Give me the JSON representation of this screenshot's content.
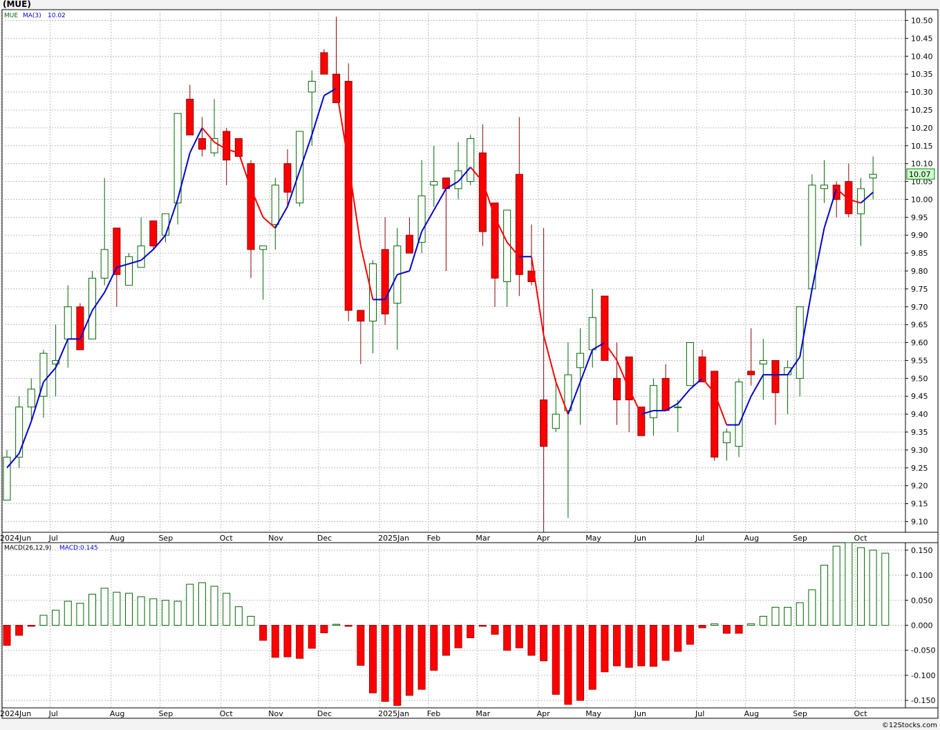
{
  "header": {
    "title": "(MUE)"
  },
  "footer": {
    "credit": "©12Stocks.com"
  },
  "colors": {
    "up": "#006600",
    "down": "#ff0000",
    "ma_up": "#0000cc",
    "ma_down": "#ff0000",
    "grid": "#bbbbbb",
    "price_badge_bg": "#ccffcc"
  },
  "chart_data": [
    {
      "type": "candlestick",
      "legend": {
        "symbol": "MUE",
        "ma_label": "MA(3)",
        "ma_value": "10.02"
      },
      "last_price_label": "10.07",
      "ylim": [
        9.07,
        10.53
      ],
      "y_ticks": [
        "10.50",
        "10.45",
        "10.40",
        "10.35",
        "10.30",
        "10.25",
        "10.20",
        "10.15",
        "10.10",
        "10.05",
        "10.00",
        "9.95",
        "9.90",
        "9.85",
        "9.80",
        "9.75",
        "9.70",
        "9.65",
        "9.60",
        "9.55",
        "9.50",
        "9.45",
        "9.40",
        "9.35",
        "9.30",
        "9.25",
        "9.20",
        "9.15",
        "9.10"
      ],
      "x_labels": [
        {
          "label": "2024Jun",
          "index": 0
        },
        {
          "label": "Jul",
          "index": 4
        },
        {
          "label": "Aug",
          "index": 9
        },
        {
          "label": "Sep",
          "index": 13
        },
        {
          "label": "Oct",
          "index": 18
        },
        {
          "label": "Nov",
          "index": 22
        },
        {
          "label": "Dec",
          "index": 26
        },
        {
          "label": "2025Jan",
          "index": 31
        },
        {
          "label": "Feb",
          "index": 35
        },
        {
          "label": "Mar",
          "index": 39
        },
        {
          "label": "Apr",
          "index": 44
        },
        {
          "label": "May",
          "index": 48
        },
        {
          "label": "Jun",
          "index": 52
        },
        {
          "label": "Jul",
          "index": 57
        },
        {
          "label": "Aug",
          "index": 61
        },
        {
          "label": "Sep",
          "index": 65
        },
        {
          "label": "Oct",
          "index": 70
        }
      ],
      "candles": [
        {
          "o": 9.16,
          "h": 9.3,
          "l": 9.16,
          "c": 9.28
        },
        {
          "o": 9.28,
          "h": 9.45,
          "l": 9.25,
          "c": 9.42
        },
        {
          "o": 9.42,
          "h": 9.5,
          "l": 9.38,
          "c": 9.47
        },
        {
          "o": 9.45,
          "h": 9.58,
          "l": 9.39,
          "c": 9.57
        },
        {
          "o": 9.54,
          "h": 9.65,
          "l": 9.45,
          "c": 9.55
        },
        {
          "o": 9.61,
          "h": 9.76,
          "l": 9.53,
          "c": 9.7
        },
        {
          "o": 9.7,
          "h": 9.71,
          "l": 9.58,
          "c": 9.58
        },
        {
          "o": 9.61,
          "h": 9.8,
          "l": 9.61,
          "c": 9.78
        },
        {
          "o": 9.78,
          "h": 10.06,
          "l": 9.76,
          "c": 9.86
        },
        {
          "o": 9.92,
          "h": 9.92,
          "l": 9.7,
          "c": 9.79
        },
        {
          "o": 9.76,
          "h": 9.85,
          "l": 9.76,
          "c": 9.84
        },
        {
          "o": 9.81,
          "h": 9.95,
          "l": 9.81,
          "c": 9.87
        },
        {
          "o": 9.94,
          "h": 9.94,
          "l": 9.86,
          "c": 9.87
        },
        {
          "o": 9.9,
          "h": 9.96,
          "l": 9.88,
          "c": 9.96
        },
        {
          "o": 9.99,
          "h": 10.24,
          "l": 9.93,
          "c": 10.24
        },
        {
          "o": 10.28,
          "h": 10.32,
          "l": 10.18,
          "c": 10.18
        },
        {
          "o": 10.17,
          "h": 10.23,
          "l": 10.12,
          "c": 10.14
        },
        {
          "o": 10.13,
          "h": 10.28,
          "l": 10.12,
          "c": 10.17
        },
        {
          "o": 10.19,
          "h": 10.2,
          "l": 10.04,
          "c": 10.11
        },
        {
          "o": 10.17,
          "h": 10.17,
          "l": 10.12,
          "c": 10.12
        },
        {
          "o": 10.1,
          "h": 10.11,
          "l": 9.78,
          "c": 9.86
        },
        {
          "o": 9.86,
          "h": 9.87,
          "l": 9.72,
          "c": 9.87
        },
        {
          "o": 9.93,
          "h": 10.06,
          "l": 9.86,
          "c": 10.04
        },
        {
          "o": 10.1,
          "h": 10.14,
          "l": 9.98,
          "c": 10.02
        },
        {
          "o": 9.99,
          "h": 10.19,
          "l": 9.98,
          "c": 10.19
        },
        {
          "o": 10.3,
          "h": 10.36,
          "l": 10.15,
          "c": 10.33
        },
        {
          "o": 10.41,
          "h": 10.42,
          "l": 10.35,
          "c": 10.35
        },
        {
          "o": 10.35,
          "h": 10.51,
          "l": 10.27,
          "c": 10.27
        },
        {
          "o": 10.33,
          "h": 10.38,
          "l": 9.66,
          "c": 9.69
        },
        {
          "o": 9.69,
          "h": 9.69,
          "l": 9.54,
          "c": 9.66
        },
        {
          "o": 9.66,
          "h": 9.83,
          "l": 9.57,
          "c": 9.82
        },
        {
          "o": 9.86,
          "h": 9.95,
          "l": 9.65,
          "c": 9.68
        },
        {
          "o": 9.71,
          "h": 9.92,
          "l": 9.58,
          "c": 9.87
        },
        {
          "o": 9.9,
          "h": 9.95,
          "l": 9.85,
          "c": 9.85
        },
        {
          "o": 9.88,
          "h": 10.11,
          "l": 9.85,
          "c": 10.01
        },
        {
          "o": 10.04,
          "h": 10.15,
          "l": 9.98,
          "c": 10.05
        },
        {
          "o": 10.06,
          "h": 10.06,
          "l": 9.8,
          "c": 10.03
        },
        {
          "o": 10.03,
          "h": 10.16,
          "l": 10.0,
          "c": 10.08
        },
        {
          "o": 10.05,
          "h": 10.18,
          "l": 10.04,
          "c": 10.17
        },
        {
          "o": 10.13,
          "h": 10.21,
          "l": 9.87,
          "c": 9.91
        },
        {
          "o": 9.99,
          "h": 9.99,
          "l": 9.7,
          "c": 9.78
        },
        {
          "o": 9.77,
          "h": 9.97,
          "l": 9.7,
          "c": 9.97
        },
        {
          "o": 10.07,
          "h": 10.23,
          "l": 9.73,
          "c": 9.79
        },
        {
          "o": 9.8,
          "h": 9.93,
          "l": 9.76,
          "c": 9.77
        },
        {
          "o": 9.44,
          "h": 9.92,
          "l": 9.07,
          "c": 9.31
        },
        {
          "o": 9.36,
          "h": 9.5,
          "l": 9.35,
          "c": 9.4
        },
        {
          "o": 9.41,
          "h": 9.6,
          "l": 9.11,
          "c": 9.51
        },
        {
          "o": 9.53,
          "h": 9.64,
          "l": 9.37,
          "c": 9.57
        },
        {
          "o": 9.58,
          "h": 9.75,
          "l": 9.53,
          "c": 9.67
        },
        {
          "o": 9.73,
          "h": 9.73,
          "l": 9.55,
          "c": 9.55
        },
        {
          "o": 9.5,
          "h": 9.6,
          "l": 9.37,
          "c": 9.44
        },
        {
          "o": 9.56,
          "h": 9.56,
          "l": 9.35,
          "c": 9.44
        },
        {
          "o": 9.42,
          "h": 9.42,
          "l": 9.34,
          "c": 9.34
        },
        {
          "o": 9.39,
          "h": 9.5,
          "l": 9.34,
          "c": 9.48
        },
        {
          "o": 9.5,
          "h": 9.54,
          "l": 9.41,
          "c": 9.41
        },
        {
          "o": 9.42,
          "h": 9.44,
          "l": 9.35,
          "c": 9.42
        },
        {
          "o": 9.48,
          "h": 9.6,
          "l": 9.48,
          "c": 9.6
        },
        {
          "o": 9.56,
          "h": 9.58,
          "l": 9.49,
          "c": 9.49
        },
        {
          "o": 9.52,
          "h": 9.52,
          "l": 9.27,
          "c": 9.28
        },
        {
          "o": 9.32,
          "h": 9.36,
          "l": 9.27,
          "c": 9.35
        },
        {
          "o": 9.31,
          "h": 9.5,
          "l": 9.28,
          "c": 9.49
        },
        {
          "o": 9.52,
          "h": 9.64,
          "l": 9.48,
          "c": 9.51
        },
        {
          "o": 9.54,
          "h": 9.61,
          "l": 9.44,
          "c": 9.55
        },
        {
          "o": 9.55,
          "h": 9.55,
          "l": 9.37,
          "c": 9.46
        },
        {
          "o": 9.51,
          "h": 9.55,
          "l": 9.4,
          "c": 9.53
        },
        {
          "o": 9.5,
          "h": 9.7,
          "l": 9.45,
          "c": 9.7
        },
        {
          "o": 9.75,
          "h": 10.07,
          "l": 9.75,
          "c": 10.04
        },
        {
          "o": 10.03,
          "h": 10.11,
          "l": 9.99,
          "c": 10.04
        },
        {
          "o": 10.04,
          "h": 10.05,
          "l": 9.95,
          "c": 10.0
        },
        {
          "o": 10.05,
          "h": 10.1,
          "l": 9.95,
          "c": 9.96
        },
        {
          "o": 9.96,
          "h": 10.06,
          "l": 9.87,
          "c": 10.03
        },
        {
          "o": 10.06,
          "h": 10.12,
          "l": 10.0,
          "c": 10.07
        }
      ],
      "ma": [
        9.25,
        9.29,
        9.38,
        9.49,
        9.53,
        9.61,
        9.61,
        9.69,
        9.74,
        9.81,
        9.82,
        9.83,
        9.86,
        9.9,
        10.0,
        10.13,
        10.2,
        10.16,
        10.14,
        10.13,
        10.03,
        9.95,
        9.92,
        9.98,
        10.08,
        10.18,
        10.29,
        10.31,
        10.1,
        9.87,
        9.72,
        9.72,
        9.79,
        9.8,
        9.91,
        9.97,
        10.03,
        10.05,
        10.09,
        10.05,
        9.95,
        9.88,
        9.84,
        9.84,
        9.62,
        9.49,
        9.4,
        9.49,
        9.58,
        9.6,
        9.55,
        9.47,
        9.4,
        9.41,
        9.41,
        9.43,
        9.47,
        9.5,
        9.46,
        9.37,
        9.37,
        9.45,
        9.51,
        9.51,
        9.51,
        9.56,
        9.75,
        9.92,
        10.03,
        10.0,
        9.99,
        10.02
      ]
    },
    {
      "type": "bar",
      "legend": {
        "label": "MACD(26,12,9)",
        "value_label": "MACD:0.145"
      },
      "ylim": [
        -0.165,
        0.165
      ],
      "y_ticks": [
        "0.150",
        "0.100",
        "0.050",
        "0.000",
        "-0.050",
        "-0.100",
        "-0.150"
      ],
      "values": [
        -0.04,
        -0.02,
        -0.002,
        0.02,
        0.03,
        0.048,
        0.044,
        0.062,
        0.074,
        0.066,
        0.064,
        0.057,
        0.053,
        0.05,
        0.048,
        0.082,
        0.085,
        0.078,
        0.064,
        0.037,
        0.018,
        -0.03,
        -0.064,
        -0.063,
        -0.066,
        -0.046,
        -0.015,
        0.002,
        -0.002,
        -0.08,
        -0.135,
        -0.152,
        -0.16,
        -0.14,
        -0.128,
        -0.09,
        -0.06,
        -0.045,
        -0.025,
        -0.002,
        -0.018,
        -0.05,
        -0.045,
        -0.06,
        -0.071,
        -0.138,
        -0.158,
        -0.15,
        -0.128,
        -0.093,
        -0.081,
        -0.084,
        -0.081,
        -0.082,
        -0.07,
        -0.052,
        -0.038,
        -0.005,
        0.003,
        -0.016,
        -0.016,
        0.003,
        0.018,
        0.036,
        0.036,
        0.045,
        0.071,
        0.12,
        0.158,
        0.165,
        0.155,
        0.15,
        0.144
      ]
    }
  ]
}
